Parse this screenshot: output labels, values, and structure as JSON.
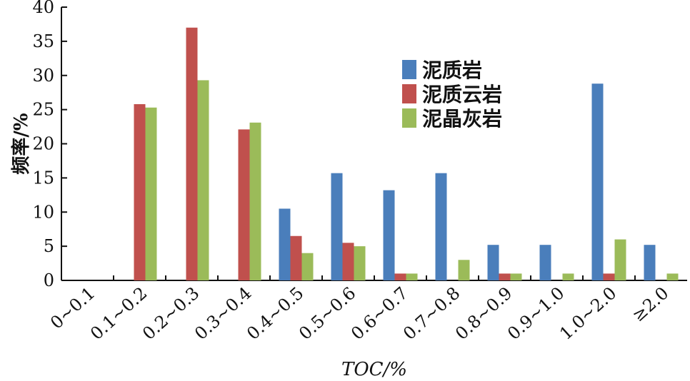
{
  "chart_data": {
    "type": "bar",
    "xlabel": "TOC/%",
    "ylabel": "频率/%",
    "ylim": [
      0,
      40
    ],
    "yticks": [
      0,
      5,
      10,
      15,
      20,
      25,
      30,
      35,
      40
    ],
    "categories": [
      "0~0.1",
      "0.1~0.2",
      "0.2~0.3",
      "0.3~0.4",
      "0.4~0.5",
      "0.5~0.6",
      "0.6~0.7",
      "0.7~0.8",
      "0.8~0.9",
      "0.9~1.0",
      "1.0~2.0",
      "≥2.0"
    ],
    "series": [
      {
        "name": "泥质岩",
        "color": "#4a7ebb",
        "values": [
          0,
          0,
          0,
          0,
          10.5,
          15.7,
          13.2,
          15.7,
          5.2,
          5.2,
          28.8,
          5.2
        ]
      },
      {
        "name": "泥质云岩",
        "color": "#c0504d",
        "values": [
          0,
          25.8,
          37.0,
          22.1,
          6.5,
          5.5,
          1.0,
          0,
          1.0,
          0,
          1.0,
          0
        ]
      },
      {
        "name": "泥晶灰岩",
        "color": "#9bbb59",
        "values": [
          0,
          25.3,
          29.3,
          23.1,
          4.0,
          5.0,
          1.0,
          3.0,
          1.0,
          1.0,
          6.0,
          1.0
        ]
      }
    ],
    "legend_position": "top-right",
    "grid": false
  }
}
